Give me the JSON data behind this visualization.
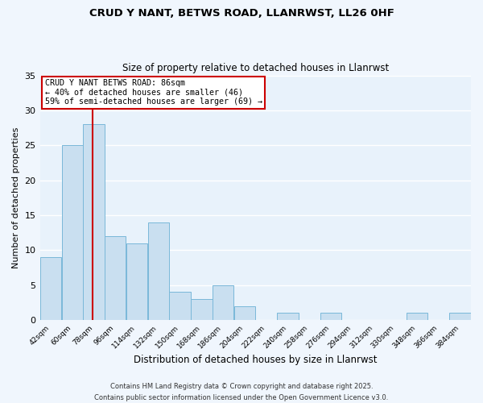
{
  "title_line1": "CRUD Y NANT, BETWS ROAD, LLANRWST, LL26 0HF",
  "title_line2": "Size of property relative to detached houses in Llanrwst",
  "xlabel": "Distribution of detached houses by size in Llanrwst",
  "ylabel": "Number of detached properties",
  "bar_edges": [
    42,
    60,
    78,
    96,
    114,
    132,
    150,
    168,
    186,
    204,
    222,
    240,
    258,
    276,
    294,
    312,
    330,
    348,
    366,
    384,
    402
  ],
  "bar_heights": [
    9,
    25,
    28,
    12,
    11,
    14,
    4,
    3,
    5,
    2,
    0,
    1,
    0,
    1,
    0,
    0,
    0,
    1,
    0,
    1
  ],
  "bar_color": "#c9dff0",
  "bar_edge_color": "#7ab8d9",
  "bg_color": "#e8f2fb",
  "fig_bg_color": "#f0f6fd",
  "grid_color": "#ffffff",
  "vline_x": 86,
  "vline_color": "#cc0000",
  "annotation_title": "CRUD Y NANT BETWS ROAD: 86sqm",
  "annotation_line2": "← 40% of detached houses are smaller (46)",
  "annotation_line3": "59% of semi-detached houses are larger (69) →",
  "annotation_box_edge_color": "#cc0000",
  "ylim": [
    0,
    35
  ],
  "yticks": [
    0,
    5,
    10,
    15,
    20,
    25,
    30,
    35
  ],
  "footnote1": "Contains HM Land Registry data © Crown copyright and database right 2025.",
  "footnote2": "Contains public sector information licensed under the Open Government Licence v3.0."
}
